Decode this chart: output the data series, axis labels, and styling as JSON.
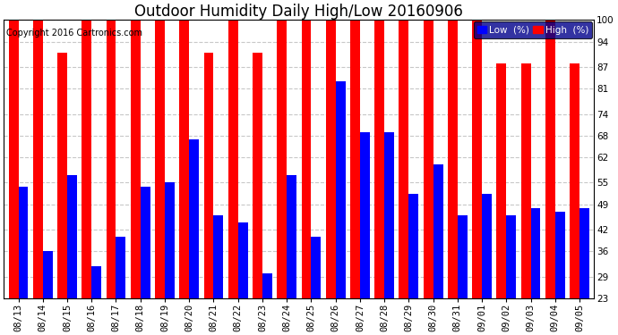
{
  "title": "Outdoor Humidity Daily High/Low 20160906",
  "copyright": "Copyright 2016 Cartronics.com",
  "dates": [
    "08/13",
    "08/14",
    "08/15",
    "08/16",
    "08/17",
    "08/18",
    "08/19",
    "08/20",
    "08/21",
    "08/22",
    "08/23",
    "08/24",
    "08/25",
    "08/26",
    "08/27",
    "08/28",
    "08/29",
    "08/30",
    "08/31",
    "09/01",
    "09/02",
    "09/03",
    "09/04",
    "09/05"
  ],
  "high": [
    100,
    100,
    91,
    100,
    100,
    100,
    100,
    100,
    91,
    100,
    91,
    100,
    100,
    100,
    100,
    100,
    100,
    100,
    100,
    100,
    88,
    88,
    100,
    88
  ],
  "low": [
    54,
    36,
    57,
    32,
    40,
    54,
    55,
    67,
    46,
    44,
    30,
    57,
    40,
    83,
    69,
    69,
    52,
    60,
    46,
    52,
    46,
    48,
    47,
    48
  ],
  "high_color": "#FF0000",
  "low_color": "#0000FF",
  "bg_color": "#FFFFFF",
  "plot_bg_color": "#FFFFFF",
  "grid_color": "#C8C8C8",
  "ylim_min": 23,
  "ylim_max": 100,
  "yticks": [
    23,
    29,
    36,
    42,
    49,
    55,
    62,
    68,
    74,
    81,
    87,
    94,
    100
  ],
  "title_fontsize": 12,
  "tick_fontsize": 7.5,
  "copyright_fontsize": 7,
  "bar_width": 0.4
}
